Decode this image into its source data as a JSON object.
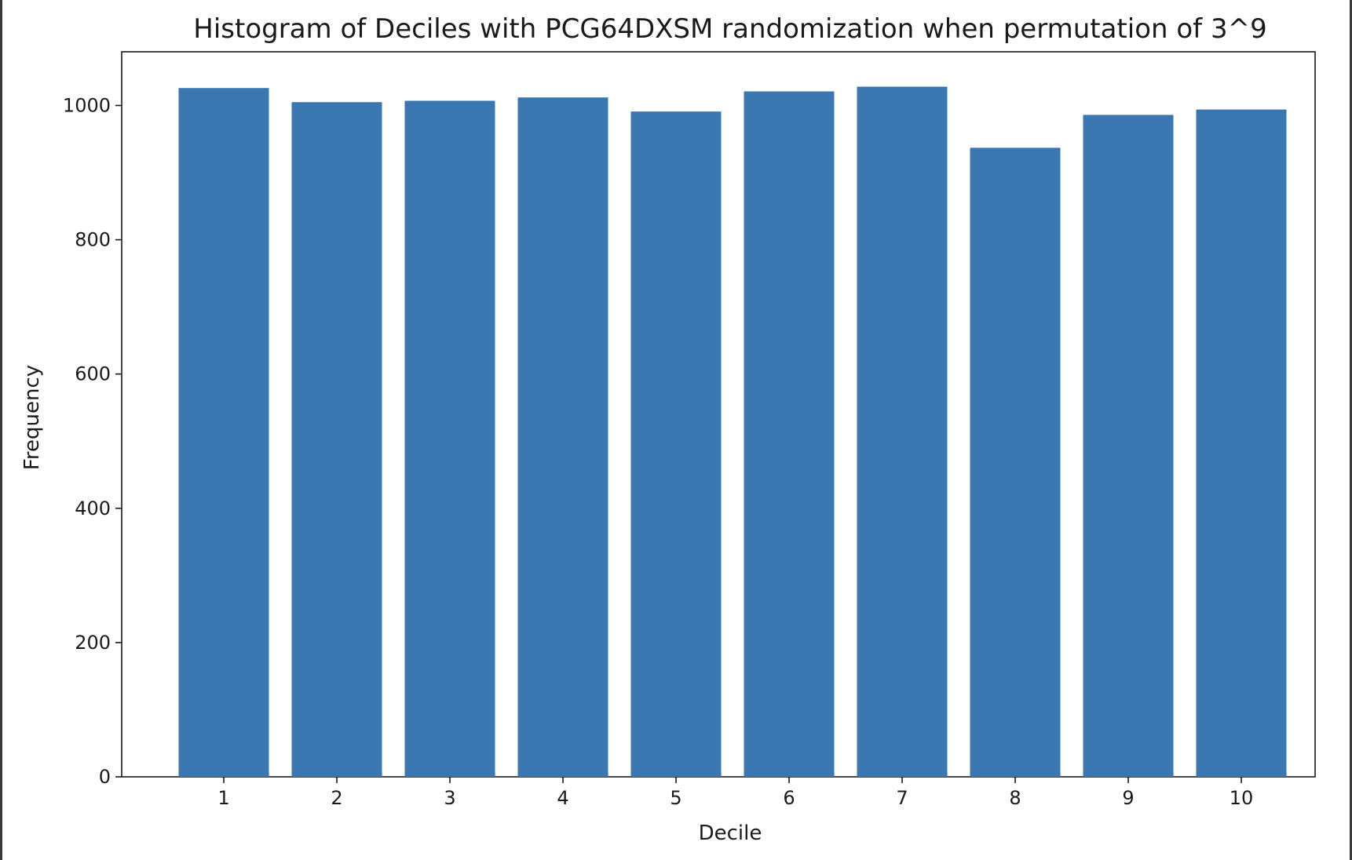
{
  "chart_data": {
    "type": "bar",
    "title": "Histogram of Deciles with PCG64DXSM randomization when permutation of 3^9",
    "xlabel": "Decile",
    "ylabel": "Frequency",
    "categories": [
      "1",
      "2",
      "3",
      "4",
      "5",
      "6",
      "7",
      "8",
      "9",
      "10"
    ],
    "values": [
      1026,
      1005,
      1007,
      1012,
      991,
      1021,
      1028,
      937,
      986,
      994
    ],
    "ylim": [
      0,
      1080
    ],
    "yticks": [
      "0",
      "200",
      "400",
      "600",
      "800",
      "1000"
    ],
    "grid": false,
    "bar_color": "#3a76b0"
  }
}
